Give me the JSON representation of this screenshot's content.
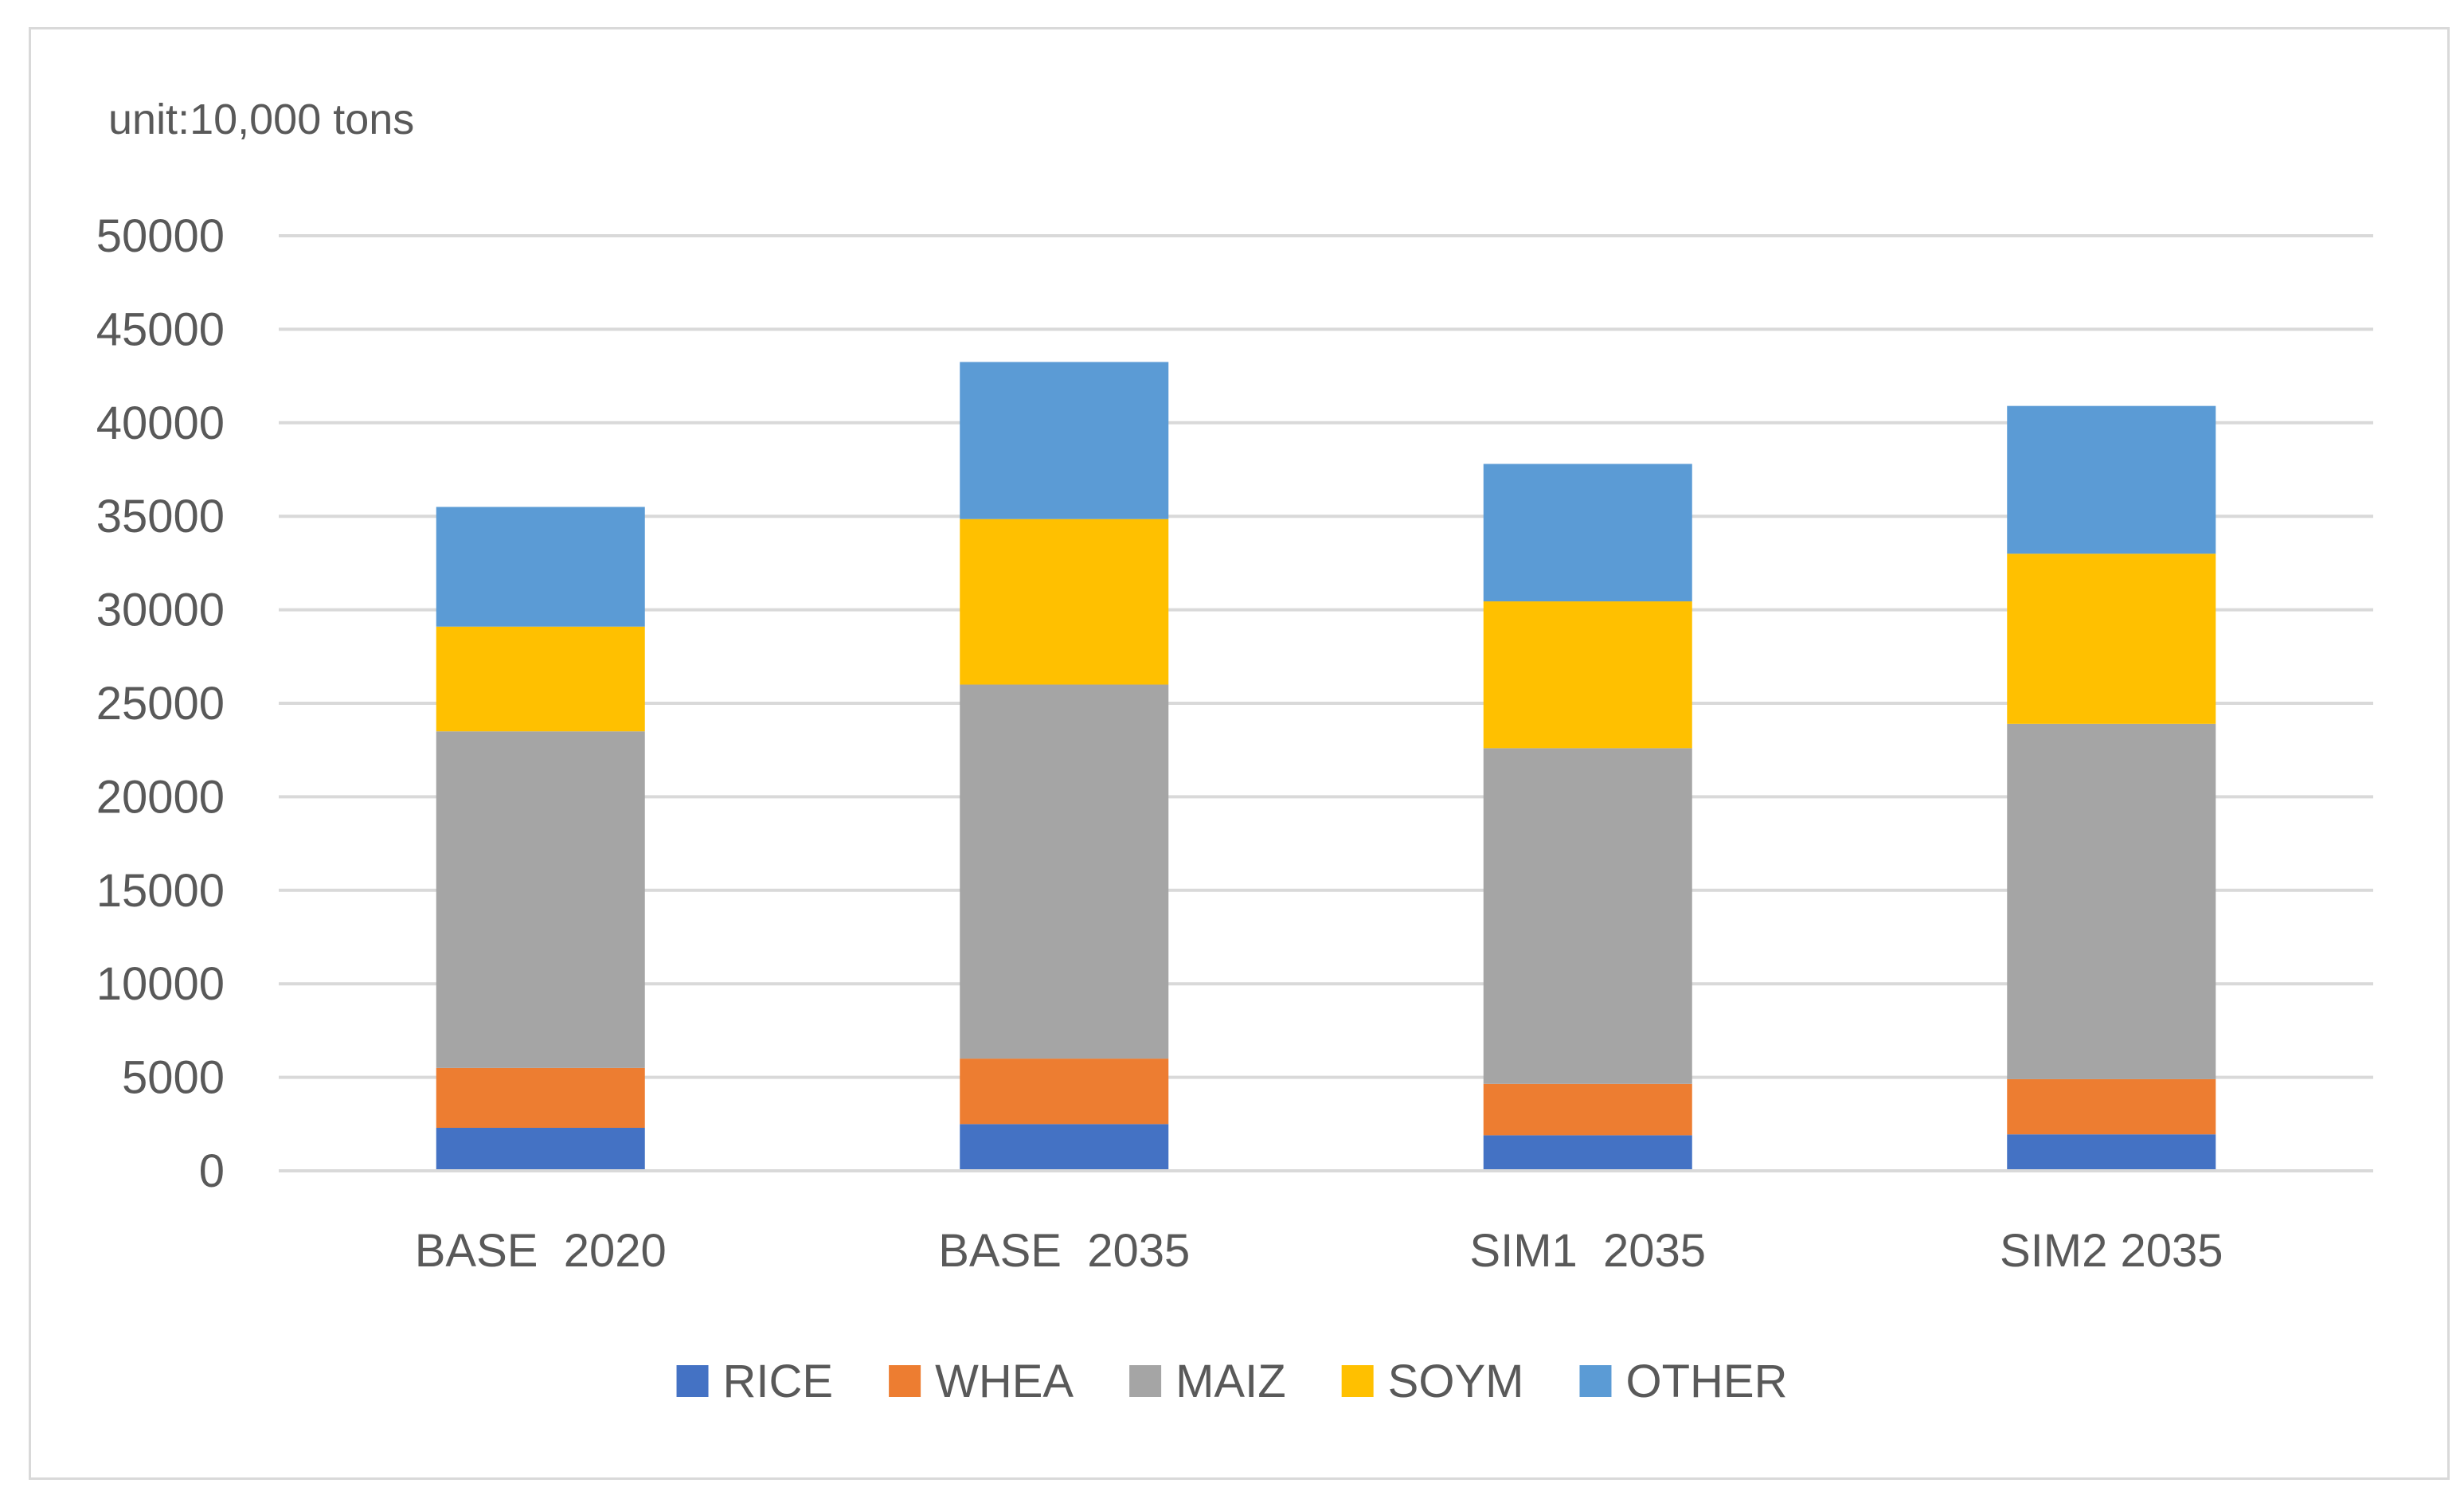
{
  "chart_data": {
    "type": "bar",
    "stacked": true,
    "title": "",
    "unit_label": "unit:10,000 tons",
    "xlabel": "",
    "ylabel": "",
    "ylim": [
      0,
      50000
    ],
    "yticks": [
      0,
      5000,
      10000,
      15000,
      20000,
      25000,
      30000,
      35000,
      40000,
      45000,
      50000
    ],
    "grid": true,
    "legend_position": "bottom",
    "categories": [
      "BASE  2020",
      "BASE  2035",
      "SIM1  2035",
      "SIM2 2035"
    ],
    "series": [
      {
        "name": "RICE",
        "color": "#4472c4",
        "values": [
          2300,
          2500,
          1900,
          1950
        ]
      },
      {
        "name": "WHEA",
        "color": "#ed7d31",
        "values": [
          3200,
          3500,
          2750,
          2950
        ]
      },
      {
        "name": "MAIZ",
        "color": "#a5a5a5",
        "values": [
          18000,
          20000,
          17950,
          19000
        ]
      },
      {
        "name": "SOYM",
        "color": "#ffc000",
        "values": [
          5600,
          8850,
          7850,
          9100
        ]
      },
      {
        "name": "OTHER",
        "color": "#5b9bd5",
        "values": [
          6400,
          8400,
          7350,
          7900
        ]
      }
    ]
  }
}
